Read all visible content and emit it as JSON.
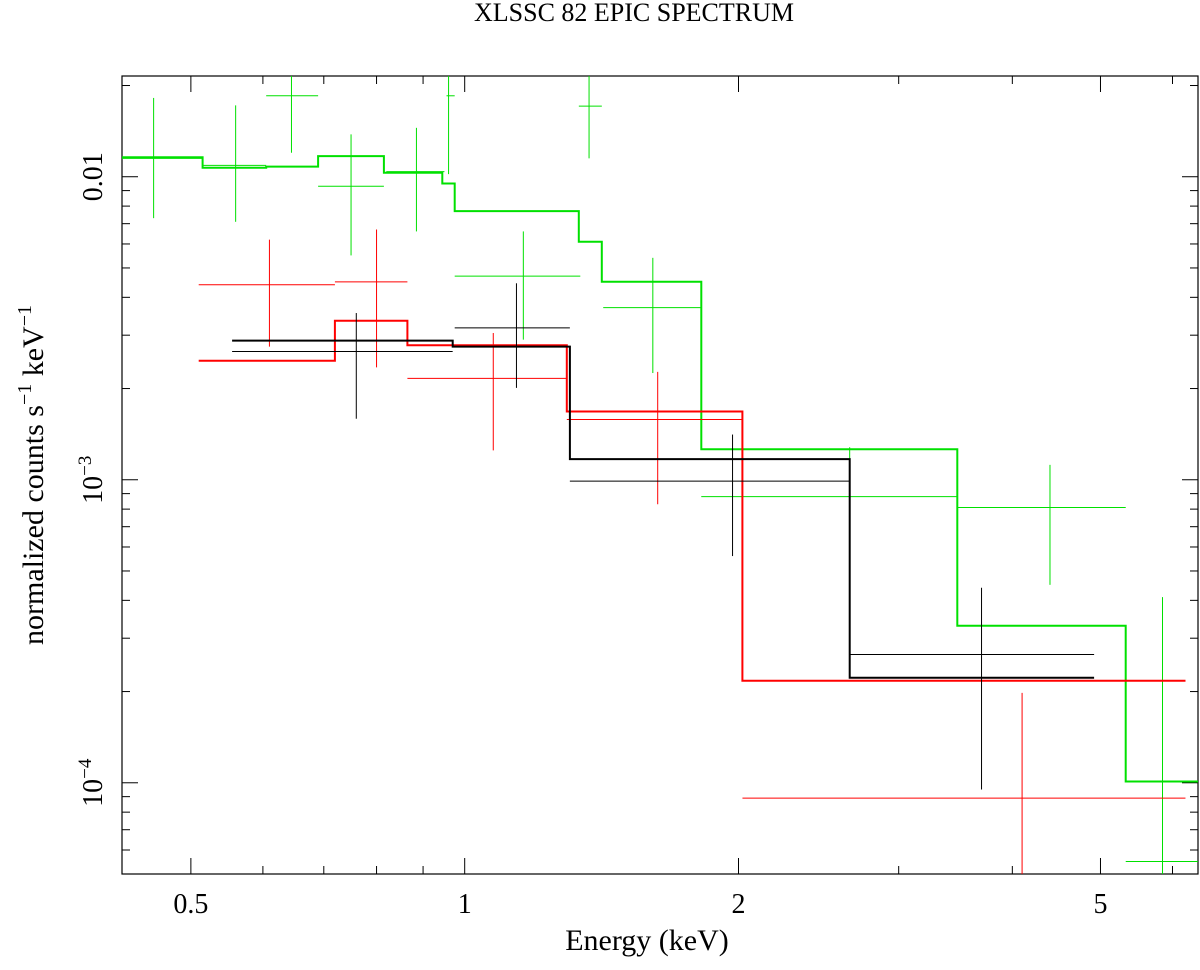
{
  "chart_data": {
    "type": "scatter",
    "title": "XLSSC 82 EPIC SPECTRUM",
    "xlabel": "Energy (keV)",
    "ylabel_main": "normalized counts s",
    "ylabel_sup1": "−1",
    "ylabel_mid": " keV",
    "ylabel_sup2": "−1",
    "x_scale": "log",
    "y_scale": "log",
    "xlim": [
      0.42,
      6.4
    ],
    "ylim": [
      5e-05,
      0.0215
    ],
    "x_ticks": [
      {
        "value": 0.5,
        "label": "0.5"
      },
      {
        "value": 1,
        "label": "1"
      },
      {
        "value": 2,
        "label": "2"
      },
      {
        "value": 5,
        "label": "5"
      }
    ],
    "y_ticks": [
      {
        "value": 0.01,
        "base": "0.01",
        "exp": ""
      },
      {
        "value": 0.001,
        "base": "10",
        "exp": "−3"
      },
      {
        "value": 0.0001,
        "base": "10",
        "exp": "−4"
      }
    ],
    "grid": false,
    "series": [
      {
        "color": "#00e000",
        "points": [
          {
            "x": 0.455,
            "xlo": 0.42,
            "xhi": 0.515,
            "y": 0.0115,
            "ylo": 0.0073,
            "yhi": 0.0182
          },
          {
            "x": 0.56,
            "xlo": 0.515,
            "xhi": 0.605,
            "y": 0.0109,
            "ylo": 0.0071,
            "yhi": 0.0172
          },
          {
            "x": 0.645,
            "xlo": 0.605,
            "xhi": 0.69,
            "y": 0.0185,
            "ylo": 0.012,
            "yhi": 0.0215
          },
          {
            "x": 0.75,
            "xlo": 0.69,
            "xhi": 0.815,
            "y": 0.0093,
            "ylo": 0.0055,
            "yhi": 0.0138
          },
          {
            "x": 0.885,
            "xlo": 0.82,
            "xhi": 0.95,
            "y": 0.0104,
            "ylo": 0.0066,
            "yhi": 0.0145
          },
          {
            "x": 0.96,
            "xlo": 0.955,
            "xhi": 0.975,
            "y": 0.0185,
            "ylo": 0.0102,
            "yhi": 0.0215
          },
          {
            "x": 1.16,
            "xlo": 0.975,
            "xhi": 1.34,
            "y": 0.0047,
            "ylo": 0.0029,
            "yhi": 0.0066
          },
          {
            "x": 1.37,
            "xlo": 1.335,
            "xhi": 1.415,
            "y": 0.0171,
            "ylo": 0.0115,
            "yhi": 0.0215
          },
          {
            "x": 1.61,
            "xlo": 1.42,
            "xhi": 1.82,
            "y": 0.0037,
            "ylo": 0.00225,
            "yhi": 0.0054
          },
          {
            "x": 2.65,
            "xlo": 1.82,
            "xhi": 3.48,
            "y": 0.00088,
            "ylo": 0.00045,
            "yhi": 0.00128
          },
          {
            "x": 4.4,
            "xlo": 3.48,
            "xhi": 5.33,
            "y": 0.00081,
            "ylo": 0.00045,
            "yhi": 0.00112
          },
          {
            "x": 5.85,
            "xlo": 5.33,
            "xhi": 6.4,
            "y": 5.5e-05,
            "ylo": 5e-05,
            "yhi": 0.00041
          }
        ],
        "model_edges": [
          0.42,
          0.515,
          0.605,
          0.69,
          0.815,
          0.945,
          0.975,
          1.335,
          1.415,
          1.82,
          3.48,
          5.33,
          6.4
        ],
        "model_values": [
          0.0116,
          0.0107,
          0.0108,
          0.0117,
          0.0103,
          0.0095,
          0.0077,
          0.0061,
          0.0045,
          0.00126,
          0.00033,
          0.000101
        ]
      },
      {
        "color": "#ff0000",
        "points": [
          {
            "x": 0.61,
            "xlo": 0.51,
            "xhi": 0.72,
            "y": 0.0044,
            "ylo": 0.00275,
            "yhi": 0.0062
          },
          {
            "x": 0.8,
            "xlo": 0.72,
            "xhi": 0.865,
            "y": 0.0045,
            "ylo": 0.00235,
            "yhi": 0.0067
          },
          {
            "x": 1.075,
            "xlo": 0.865,
            "xhi": 1.295,
            "y": 0.00216,
            "ylo": 0.00125,
            "yhi": 0.00305
          },
          {
            "x": 1.63,
            "xlo": 1.295,
            "xhi": 2.02,
            "y": 0.00158,
            "ylo": 0.00083,
            "yhi": 0.00227
          },
          {
            "x": 4.1,
            "xlo": 2.02,
            "xhi": 6.2,
            "y": 8.9e-05,
            "ylo": 5e-05,
            "yhi": 0.000198
          }
        ],
        "model_edges": [
          0.51,
          0.72,
          0.865,
          1.295,
          2.02,
          6.2
        ],
        "model_values": [
          0.00247,
          0.00335,
          0.00278,
          0.00168,
          0.000217
        ]
      },
      {
        "color": "#000000",
        "points": [
          {
            "x": 0.76,
            "xlo": 0.555,
            "xhi": 0.97,
            "y": 0.00265,
            "ylo": 0.00159,
            "yhi": 0.00355
          },
          {
            "x": 1.14,
            "xlo": 0.975,
            "xhi": 1.305,
            "y": 0.00317,
            "ylo": 0.00201,
            "yhi": 0.00445
          },
          {
            "x": 1.97,
            "xlo": 1.305,
            "xhi": 2.65,
            "y": 0.00099,
            "ylo": 0.00056,
            "yhi": 0.00141
          },
          {
            "x": 3.7,
            "xlo": 2.65,
            "xhi": 4.92,
            "y": 0.000265,
            "ylo": 9.5e-05,
            "yhi": 0.00044
          }
        ],
        "model_edges": [
          0.555,
          0.97,
          1.305,
          2.65,
          4.92
        ],
        "model_values": [
          0.00288,
          0.00275,
          0.00117,
          0.000222
        ]
      }
    ]
  }
}
